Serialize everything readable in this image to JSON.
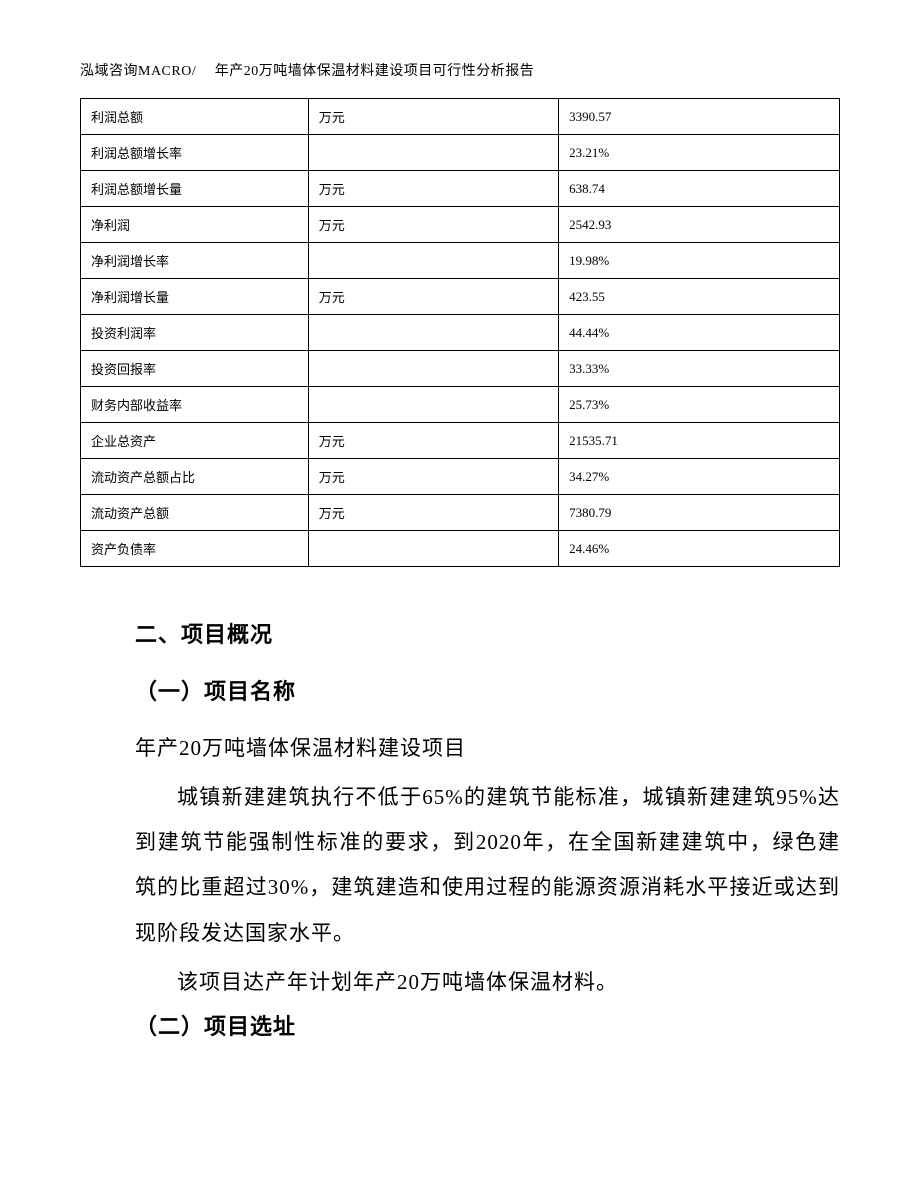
{
  "header": {
    "text": "泓域咨询MACRO/　 年产20万吨墙体保温材料建设项目可行性分析报告"
  },
  "table": {
    "rows": [
      {
        "label": "利润总额",
        "unit": "万元",
        "value": "3390.57"
      },
      {
        "label": "利润总额增长率",
        "unit": "",
        "value": "23.21%"
      },
      {
        "label": "利润总额增长量",
        "unit": "万元",
        "value": "638.74"
      },
      {
        "label": "净利润",
        "unit": "万元",
        "value": "2542.93"
      },
      {
        "label": "净利润增长率",
        "unit": "",
        "value": "19.98%"
      },
      {
        "label": "净利润增长量",
        "unit": "万元",
        "value": "423.55"
      },
      {
        "label": "投资利润率",
        "unit": "",
        "value": "44.44%"
      },
      {
        "label": "投资回报率",
        "unit": "",
        "value": "33.33%"
      },
      {
        "label": "财务内部收益率",
        "unit": "",
        "value": "25.73%"
      },
      {
        "label": "企业总资产",
        "unit": "万元",
        "value": "21535.71"
      },
      {
        "label": "流动资产总额占比",
        "unit": "万元",
        "value": "34.27%"
      },
      {
        "label": "流动资产总额",
        "unit": "万元",
        "value": "7380.79"
      },
      {
        "label": "资产负债率",
        "unit": "",
        "value": "24.46%"
      }
    ]
  },
  "sections": {
    "section2_title": "二、项目概况",
    "sub1_title": "（一）项目名称",
    "sub1_line1": "年产20万吨墙体保温材料建设项目",
    "sub1_para1": "城镇新建建筑执行不低于65%的建筑节能标准，城镇新建建筑95%达到建筑节能强制性标准的要求，到2020年，在全国新建建筑中，绿色建筑的比重超过30%，建筑建造和使用过程的能源资源消耗水平接近或达到现阶段发达国家水平。",
    "sub1_line2": "该项目达产年计划年产20万吨墙体保温材料。",
    "sub2_title": "（二）项目选址"
  }
}
